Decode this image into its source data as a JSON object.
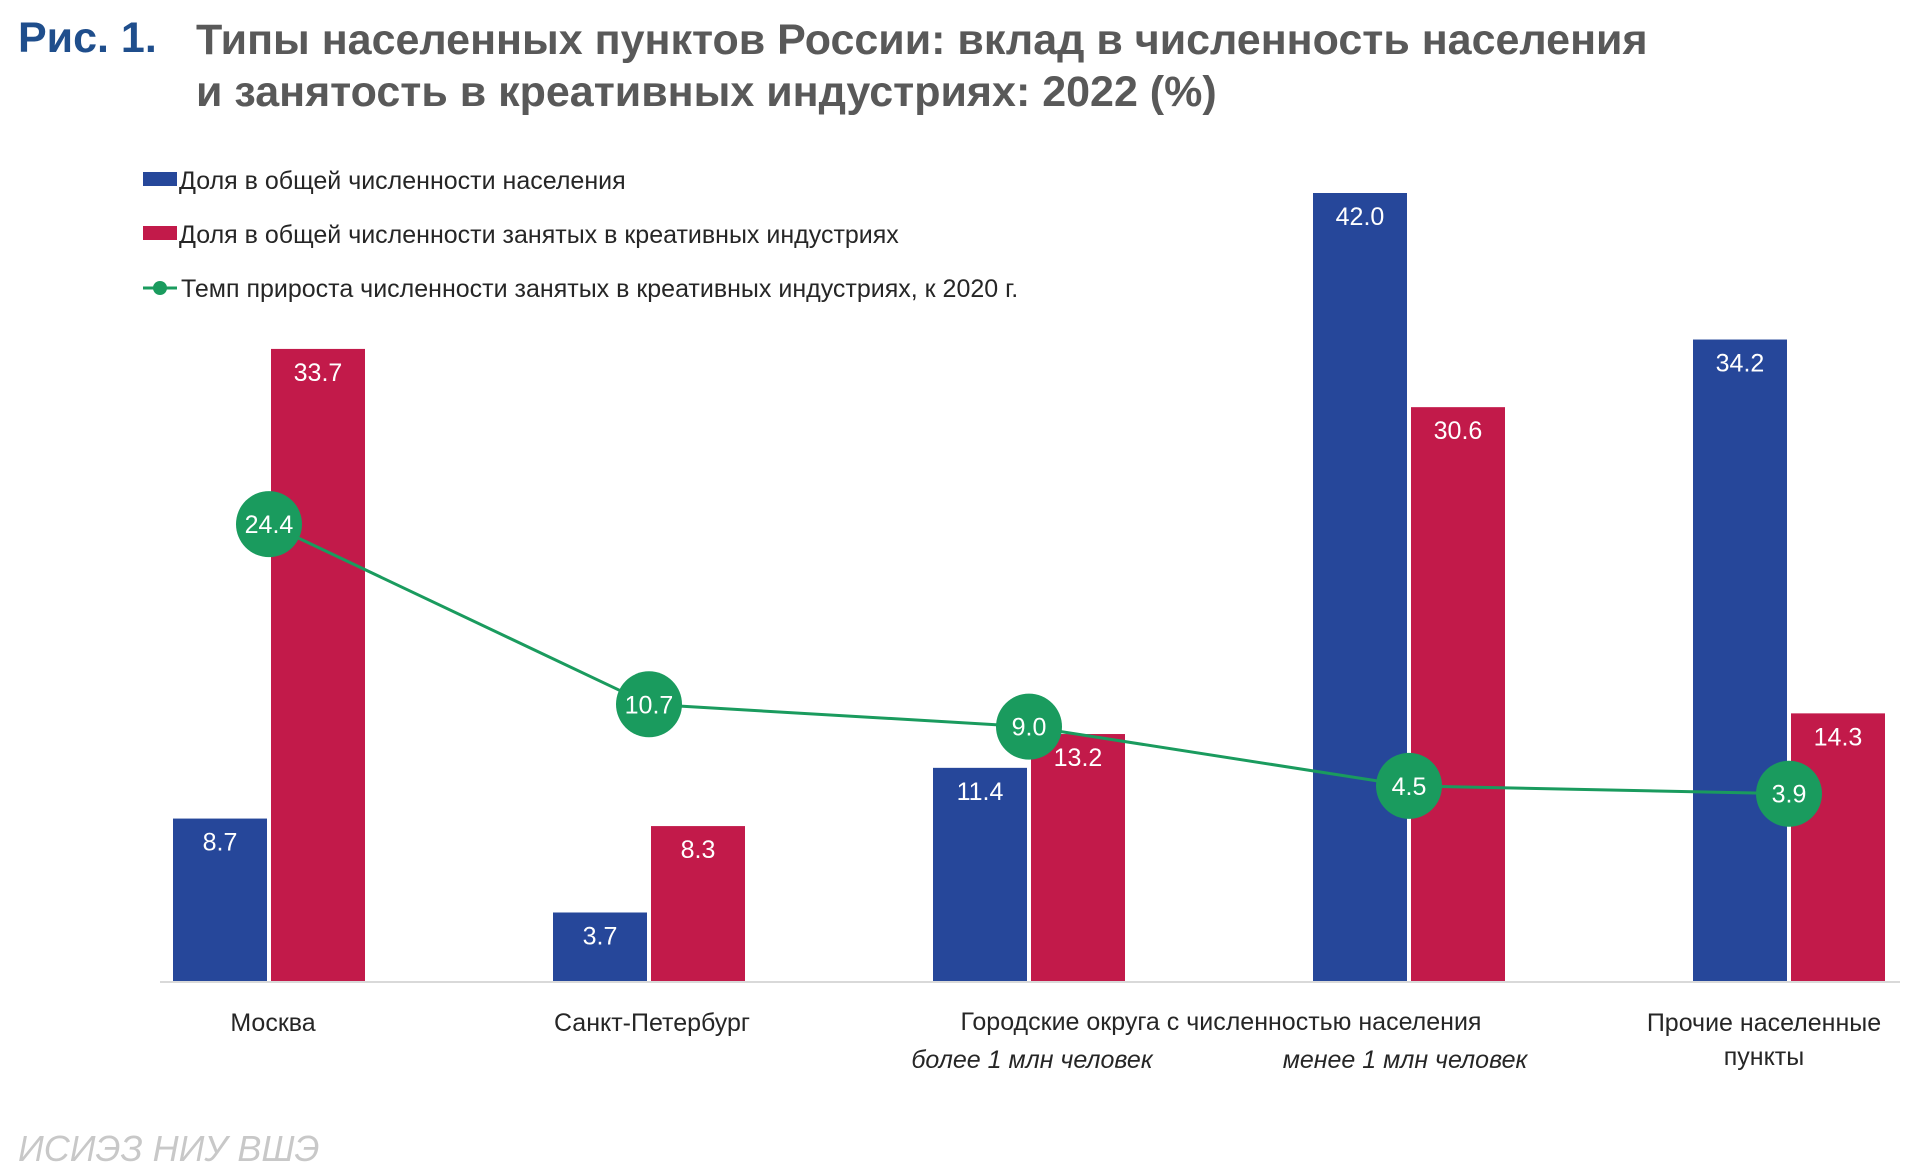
{
  "figure": {
    "label": "Рис. 1.",
    "title_line1": "Типы населенных пунктов России: вклад в численность населения",
    "title_line2": "и занятость в креативных индустриях: 2022 (%)"
  },
  "source": "ИСИЭЗ НИУ ВШЭ",
  "colors": {
    "population": "#26479a",
    "employment": "#c21a4a",
    "growth": "#1a9b5e",
    "figure_label": "#1f4e8c",
    "title": "#595959"
  },
  "chart_data": {
    "type": "bar",
    "categories": [
      [
        "Москва"
      ],
      [
        "Санкт-Петербург"
      ],
      [
        "Городские округа с численностью населения",
        "более 1 млн человек"
      ],
      [
        "",
        "менее 1 млн человек"
      ],
      [
        "Прочие населенные",
        "пункты"
      ]
    ],
    "series": [
      {
        "name": "Доля в общей численности населения",
        "type": "bar",
        "values": [
          8.7,
          3.7,
          11.4,
          42.0,
          34.2
        ]
      },
      {
        "name": "Доля в общей численности занятых в креативных индустриях",
        "type": "bar",
        "values": [
          33.7,
          8.3,
          13.2,
          30.6,
          14.3
        ]
      },
      {
        "name": "Темп прироста численности занятых в креативных индустриях, к 2020 г.",
        "type": "line",
        "values": [
          24.4,
          10.7,
          9.0,
          4.5,
          3.9
        ]
      }
    ],
    "ylim": [
      0,
      42
    ],
    "grid": false,
    "legend_position": "top-left"
  }
}
